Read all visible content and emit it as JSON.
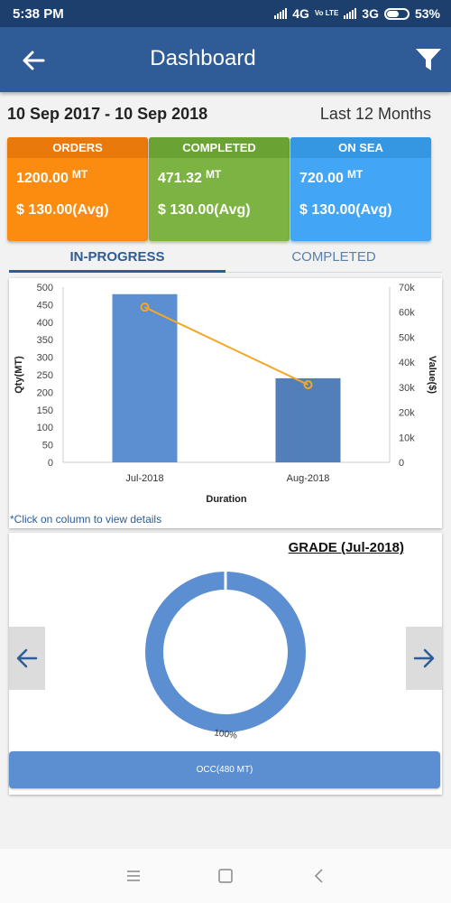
{
  "status_bar": {
    "time": "5:38 PM",
    "network1": "4G",
    "volte": "Vo LTE",
    "network2": "3G",
    "battery": "53%"
  },
  "app_bar": {
    "title": "Dashboard",
    "back_icon": "arrow-left-icon",
    "filter_icon": "filter-icon"
  },
  "date_range": "10 Sep 2017 - 10 Sep 2018",
  "period": "Last 12 Months",
  "cards": [
    {
      "label": "ORDERS",
      "qty": "1200.00",
      "unit": "MT",
      "avg": "$ 130.00(Avg)",
      "color": "#fb8c10"
    },
    {
      "label": "COMPLETED",
      "qty": "471.32",
      "unit": "MT",
      "avg": "$ 130.00(Avg)",
      "color": "#7cb342"
    },
    {
      "label": "ON SEA",
      "qty": "720.00",
      "unit": "MT",
      "avg": "$ 130.00(Avg)",
      "color": "#42a5f5"
    }
  ],
  "tabs": [
    {
      "label": "IN-PROGRESS",
      "active": true
    },
    {
      "label": "COMPLETED",
      "active": false
    }
  ],
  "chart_note": "*Click on column to view details",
  "chart_data": {
    "type": "bar",
    "categories": [
      "Jul-2018",
      "Aug-2018"
    ],
    "series": [
      {
        "values": [
          480,
          240
        ],
        "color": "#5b8fd1",
        "type": "bar",
        "axis": "left"
      },
      {
        "values": [
          62000,
          31000
        ],
        "color": "#f5a623",
        "type": "line",
        "axis": "right"
      }
    ],
    "xlabel": "Duration",
    "ylabel": "Qty(MT)",
    "y2label": "Value($)",
    "ylim": [
      0,
      500
    ],
    "y2lim": [
      0,
      70000
    ],
    "yticks": [
      "0",
      "50",
      "100",
      "150",
      "200",
      "250",
      "300",
      "350",
      "400",
      "450",
      "500"
    ],
    "y2ticks": [
      "0",
      "10k",
      "20k",
      "30k",
      "40k",
      "50k",
      "60k",
      "70k"
    ]
  },
  "grade": {
    "title": "GRADE (Jul-2018)",
    "donut_label": "100%",
    "occ_label": "OCC(480 MT)",
    "donut_color": "#5b8fd1"
  }
}
